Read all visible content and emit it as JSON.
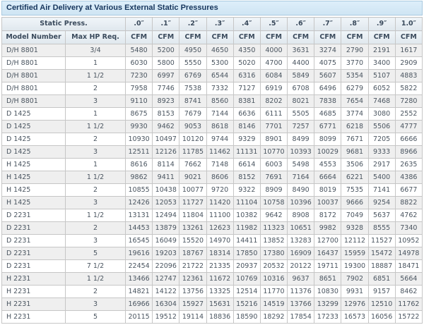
{
  "title": "Certified Air Delivery at Various External Static Pressures",
  "colors": {
    "title_bg": "#d6e9f6",
    "title_text": "#17365d",
    "header_bg": "#e6edf3",
    "row_alt_bg": "#efefef",
    "grid_border": "#c6c6c6",
    "data_text": "#4a5560"
  },
  "table": {
    "static_press_label": "Static Press.",
    "model_header": "Model Number",
    "hp_header": "Max HP Req.",
    "cfm_label": "CFM",
    "pressures": [
      ".0″",
      ".1″",
      ".2″",
      ".3″",
      ".4″",
      ".5″",
      ".6″",
      ".7″",
      ".8″",
      ".9″",
      "1.0″"
    ],
    "rows": [
      {
        "model": "D/H 8801",
        "hp": "3/4",
        "cfm": [
          5480,
          5200,
          4950,
          4650,
          4350,
          4000,
          3631,
          3274,
          2790,
          2191,
          1617
        ]
      },
      {
        "model": "D/H 8801",
        "hp": "1",
        "cfm": [
          6030,
          5800,
          5550,
          5300,
          5020,
          4700,
          4400,
          4075,
          3770,
          3400,
          2909
        ]
      },
      {
        "model": "D/H 8801",
        "hp": "1 1/2",
        "cfm": [
          7230,
          6997,
          6769,
          6544,
          6316,
          6084,
          5849,
          5607,
          5354,
          5107,
          4883
        ]
      },
      {
        "model": "D/H 8801",
        "hp": "2",
        "cfm": [
          7958,
          7746,
          7538,
          7332,
          7127,
          6919,
          6708,
          6496,
          6279,
          6052,
          5822
        ]
      },
      {
        "model": "D/H 8801",
        "hp": "3",
        "cfm": [
          9110,
          8923,
          8741,
          8560,
          8381,
          8202,
          8021,
          7838,
          7654,
          7468,
          7280
        ]
      },
      {
        "model": "D 1425",
        "hp": "1",
        "cfm": [
          8675,
          8153,
          7679,
          7144,
          6636,
          6111,
          5505,
          4685,
          3774,
          3080,
          2552
        ]
      },
      {
        "model": "D 1425",
        "hp": "1 1/2",
        "cfm": [
          9930,
          9462,
          9053,
          8618,
          8146,
          7701,
          7257,
          6771,
          6218,
          5506,
          4777
        ]
      },
      {
        "model": "D 1425",
        "hp": "2",
        "cfm": [
          10930,
          10497,
          10120,
          9744,
          9329,
          8901,
          8499,
          8099,
          7671,
          7205,
          6666
        ]
      },
      {
        "model": "D 1425",
        "hp": "3",
        "cfm": [
          12511,
          12126,
          11785,
          11462,
          11131,
          10770,
          10393,
          10029,
          9681,
          9333,
          8966
        ]
      },
      {
        "model": "H 1425",
        "hp": "1",
        "cfm": [
          8616,
          8114,
          7662,
          7148,
          6614,
          6003,
          5498,
          4553,
          3506,
          2917,
          2635
        ]
      },
      {
        "model": "H 1425",
        "hp": "1 1/2",
        "cfm": [
          9862,
          9411,
          9021,
          8606,
          8152,
          7691,
          7164,
          6664,
          6221,
          5400,
          4386
        ]
      },
      {
        "model": "H 1425",
        "hp": "2",
        "cfm": [
          10855,
          10438,
          10077,
          9720,
          9322,
          8909,
          8490,
          8019,
          7535,
          7141,
          6677
        ]
      },
      {
        "model": "H 1425",
        "hp": "3",
        "cfm": [
          12426,
          12053,
          11727,
          11420,
          11104,
          10758,
          10396,
          10037,
          9666,
          9254,
          8822
        ]
      },
      {
        "model": "D 2231",
        "hp": "1 1/2",
        "cfm": [
          13131,
          12494,
          11804,
          11100,
          10382,
          9642,
          8908,
          8172,
          7049,
          5637,
          4762
        ]
      },
      {
        "model": "D 2231",
        "hp": "2",
        "cfm": [
          14453,
          13879,
          13261,
          12623,
          11982,
          11323,
          10651,
          9982,
          9328,
          8555,
          7340
        ]
      },
      {
        "model": "D 2231",
        "hp": "3",
        "cfm": [
          16545,
          16049,
          15520,
          14970,
          14411,
          13852,
          13283,
          12700,
          12112,
          11527,
          10952
        ]
      },
      {
        "model": "D 2231",
        "hp": "5",
        "cfm": [
          19616,
          19203,
          18767,
          18314,
          17850,
          17380,
          16909,
          16437,
          15959,
          15472,
          14978
        ]
      },
      {
        "model": "D 2231",
        "hp": "7 1/2",
        "cfm": [
          22454,
          22096,
          21722,
          21335,
          20937,
          20532,
          20122,
          19711,
          19300,
          18887,
          18471
        ]
      },
      {
        "model": "H 2231",
        "hp": "1 1/2",
        "cfm": [
          13466,
          12747,
          12361,
          11672,
          10769,
          10316,
          9637,
          8651,
          7902,
          6851,
          5664
        ]
      },
      {
        "model": "H 2231",
        "hp": "2",
        "cfm": [
          14821,
          14122,
          13756,
          13325,
          12514,
          11770,
          11376,
          10830,
          9931,
          9157,
          8462
        ]
      },
      {
        "model": "H 2231",
        "hp": "3",
        "cfm": [
          16966,
          16304,
          15927,
          15631,
          15216,
          14519,
          13766,
          13299,
          12976,
          12510,
          11762
        ]
      },
      {
        "model": "H 2231",
        "hp": "5",
        "cfm": [
          20115,
          19512,
          19114,
          18836,
          18590,
          18292,
          17854,
          17233,
          16573,
          16056,
          15722
        ]
      }
    ]
  }
}
